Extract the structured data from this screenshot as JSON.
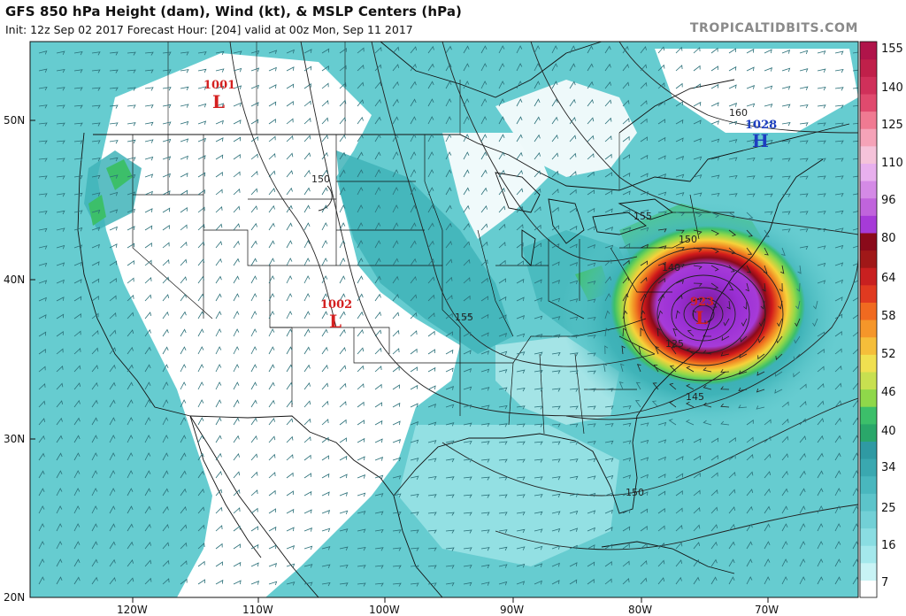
{
  "header": {
    "title": "GFS 850 hPa Height (dam), Wind (kt), & MSLP Centers (hPa)",
    "subtitle": "Init: 12z Sep 02 2017   Forecast Hour: [204]   valid at 00z Mon, Sep 11 2017",
    "credit": "TROPICALTIDBITS.COM"
  },
  "axes": {
    "lat_labels": [
      "50N",
      "40N",
      "30N",
      "20N"
    ],
    "lon_labels": [
      "120W",
      "110W",
      "100W",
      "90W",
      "80W",
      "70W"
    ]
  },
  "colorbar": {
    "unit": "kt",
    "labels": [
      "155",
      "140",
      "125",
      "110",
      "96",
      "80",
      "64",
      "58",
      "52",
      "46",
      "40",
      "34",
      "25",
      "16",
      "7"
    ]
  },
  "pressure_centers": [
    {
      "type": "L",
      "value": "1001",
      "color": "#d42020"
    },
    {
      "type": "L",
      "value": "1002",
      "color": "#d42020"
    },
    {
      "type": "H",
      "value": "1028",
      "color": "#1d3ec0"
    },
    {
      "type": "L",
      "value": "923",
      "color": "#d42020"
    }
  ],
  "contour_labels": [
    "150",
    "155",
    "155",
    "150",
    "140",
    "125",
    "145",
    "160",
    "150"
  ],
  "colors": {
    "land": "#ffffff",
    "ocean_wind": "#66ccd0",
    "gulf_wind": "#9be3e6",
    "dark_band": "#2f9aa3",
    "low_color": "#d42020",
    "high_color": "#1d3ec0"
  }
}
